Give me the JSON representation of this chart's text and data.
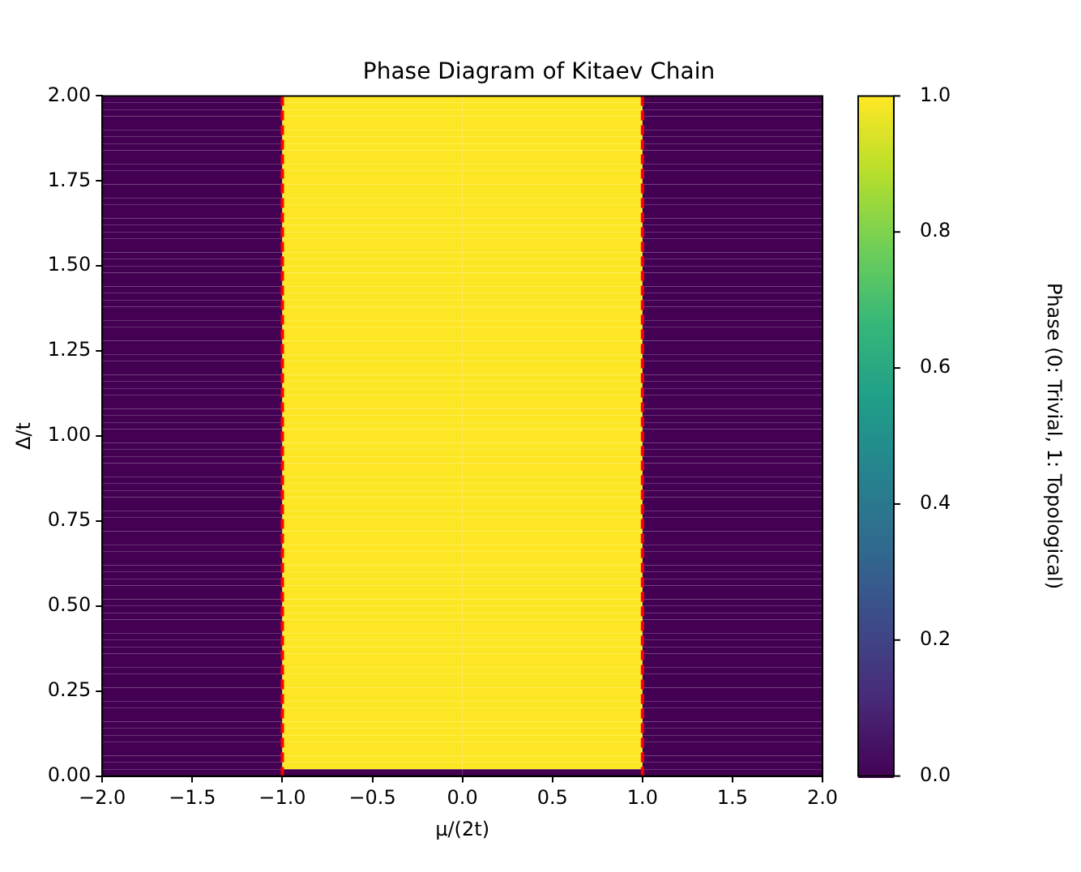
{
  "chart_data": {
    "type": "heatmap",
    "title": "Phase Diagram of Kitaev Chain",
    "xlabel": "μ/(2t)",
    "ylabel": "Δ/t",
    "clabel": "Phase (0: Trivial, 1: Topological)",
    "x": [
      -1.5,
      -0.5,
      0.5,
      1.5
    ],
    "y": [
      1.99,
      1.97,
      1.95,
      1.93,
      1.91,
      1.89,
      1.87,
      1.85,
      1.83,
      1.81,
      1.79,
      1.77,
      1.75,
      1.73,
      1.71,
      1.69,
      1.67,
      1.65,
      1.63,
      1.61,
      1.59,
      1.57,
      1.55,
      1.53,
      1.51,
      1.49,
      1.47,
      1.45,
      1.43,
      1.41,
      1.39,
      1.37,
      1.35,
      1.33,
      1.31,
      1.29,
      1.27,
      1.25,
      1.23,
      1.21,
      1.19,
      1.17,
      1.15,
      1.13,
      1.11,
      1.09,
      1.07,
      1.05,
      1.03,
      1.01,
      0.99,
      0.97,
      0.95,
      0.93,
      0.91,
      0.89,
      0.87,
      0.85,
      0.83,
      0.81,
      0.79,
      0.77,
      0.75,
      0.73,
      0.71,
      0.69,
      0.67,
      0.65,
      0.63,
      0.61,
      0.59,
      0.57,
      0.55,
      0.53,
      0.51,
      0.49,
      0.47,
      0.45,
      0.43,
      0.41,
      0.39,
      0.37,
      0.35,
      0.33,
      0.31,
      0.29,
      0.27,
      0.25,
      0.23,
      0.21,
      0.19,
      0.17,
      0.15,
      0.13,
      0.11,
      0.09,
      0.07,
      0.05,
      0.03,
      0.01
    ],
    "cells": [
      [
        0,
        1,
        1,
        0
      ],
      [
        0,
        1,
        1,
        0
      ],
      [
        0,
        1,
        1,
        0
      ],
      [
        0,
        1,
        1,
        0
      ],
      [
        0,
        1,
        1,
        0
      ],
      [
        0,
        1,
        1,
        0
      ],
      [
        0,
        1,
        1,
        0
      ],
      [
        0,
        1,
        1,
        0
      ],
      [
        0,
        1,
        1,
        0
      ],
      [
        0,
        1,
        1,
        0
      ],
      [
        0,
        1,
        1,
        0
      ],
      [
        0,
        1,
        1,
        0
      ],
      [
        0,
        1,
        1,
        0
      ],
      [
        0,
        1,
        1,
        0
      ],
      [
        0,
        1,
        1,
        0
      ],
      [
        0,
        1,
        1,
        0
      ],
      [
        0,
        1,
        1,
        0
      ],
      [
        0,
        1,
        1,
        0
      ],
      [
        0,
        1,
        1,
        0
      ],
      [
        0,
        1,
        1,
        0
      ],
      [
        0,
        1,
        1,
        0
      ],
      [
        0,
        1,
        1,
        0
      ],
      [
        0,
        1,
        1,
        0
      ],
      [
        0,
        1,
        1,
        0
      ],
      [
        0,
        1,
        1,
        0
      ],
      [
        0,
        1,
        1,
        0
      ],
      [
        0,
        1,
        1,
        0
      ],
      [
        0,
        1,
        1,
        0
      ],
      [
        0,
        1,
        1,
        0
      ],
      [
        0,
        1,
        1,
        0
      ],
      [
        0,
        1,
        1,
        0
      ],
      [
        0,
        1,
        1,
        0
      ],
      [
        0,
        1,
        1,
        0
      ],
      [
        0,
        1,
        1,
        0
      ],
      [
        0,
        1,
        1,
        0
      ],
      [
        0,
        1,
        1,
        0
      ],
      [
        0,
        1,
        1,
        0
      ],
      [
        0,
        1,
        1,
        0
      ],
      [
        0,
        1,
        1,
        0
      ],
      [
        0,
        1,
        1,
        0
      ],
      [
        0,
        1,
        1,
        0
      ],
      [
        0,
        1,
        1,
        0
      ],
      [
        0,
        1,
        1,
        0
      ],
      [
        0,
        1,
        1,
        0
      ],
      [
        0,
        1,
        1,
        0
      ],
      [
        0,
        1,
        1,
        0
      ],
      [
        0,
        1,
        1,
        0
      ],
      [
        0,
        1,
        1,
        0
      ],
      [
        0,
        1,
        1,
        0
      ],
      [
        0,
        1,
        1,
        0
      ],
      [
        0,
        1,
        1,
        0
      ],
      [
        0,
        1,
        1,
        0
      ],
      [
        0,
        1,
        1,
        0
      ],
      [
        0,
        1,
        1,
        0
      ],
      [
        0,
        1,
        1,
        0
      ],
      [
        0,
        1,
        1,
        0
      ],
      [
        0,
        1,
        1,
        0
      ],
      [
        0,
        1,
        1,
        0
      ],
      [
        0,
        1,
        1,
        0
      ],
      [
        0,
        1,
        1,
        0
      ],
      [
        0,
        1,
        1,
        0
      ],
      [
        0,
        1,
        1,
        0
      ],
      [
        0,
        1,
        1,
        0
      ],
      [
        0,
        1,
        1,
        0
      ],
      [
        0,
        1,
        1,
        0
      ],
      [
        0,
        1,
        1,
        0
      ],
      [
        0,
        1,
        1,
        0
      ],
      [
        0,
        1,
        1,
        0
      ],
      [
        0,
        1,
        1,
        0
      ],
      [
        0,
        1,
        1,
        0
      ],
      [
        0,
        1,
        1,
        0
      ],
      [
        0,
        1,
        1,
        0
      ],
      [
        0,
        1,
        1,
        0
      ],
      [
        0,
        1,
        1,
        0
      ],
      [
        0,
        1,
        1,
        0
      ],
      [
        0,
        1,
        1,
        0
      ],
      [
        0,
        1,
        1,
        0
      ],
      [
        0,
        1,
        1,
        0
      ],
      [
        0,
        1,
        1,
        0
      ],
      [
        0,
        1,
        1,
        0
      ],
      [
        0,
        1,
        1,
        0
      ],
      [
        0,
        1,
        1,
        0
      ],
      [
        0,
        1,
        1,
        0
      ],
      [
        0,
        1,
        1,
        0
      ],
      [
        0,
        1,
        1,
        0
      ],
      [
        0,
        1,
        1,
        0
      ],
      [
        0,
        1,
        1,
        0
      ],
      [
        0,
        1,
        1,
        0
      ],
      [
        0,
        1,
        1,
        0
      ],
      [
        0,
        1,
        1,
        0
      ],
      [
        0,
        1,
        1,
        0
      ],
      [
        0,
        1,
        1,
        0
      ],
      [
        0,
        1,
        1,
        0
      ],
      [
        0,
        1,
        1,
        0
      ],
      [
        0,
        1,
        1,
        0
      ],
      [
        0,
        1,
        1,
        0
      ],
      [
        0,
        1,
        1,
        0
      ],
      [
        0,
        1,
        1,
        0
      ],
      [
        0,
        1,
        1,
        0
      ],
      [
        0,
        0,
        0,
        0
      ]
    ],
    "colors": [
      "#440154",
      "#482878",
      "#3e4989",
      "#31688e",
      "#26828e",
      "#1f9e89",
      "#35b779",
      "#6ece58",
      "#b5de2b",
      "#fde725"
    ],
    "xlim": [
      -2,
      2
    ],
    "xticks": [
      {
        "value": -2,
        "label": "−2.0"
      },
      {
        "value": -1.5,
        "label": "−1.5"
      },
      {
        "value": -1,
        "label": "−1.0"
      },
      {
        "value": -0.5,
        "label": "−0.5"
      },
      {
        "value": 0,
        "label": "0.0"
      },
      {
        "value": 0.5,
        "label": "0.5"
      },
      {
        "value": 1,
        "label": "1.0"
      },
      {
        "value": 1.5,
        "label": "1.5"
      },
      {
        "value": 2,
        "label": "2.0"
      }
    ],
    "ylim": [
      0,
      2
    ],
    "yticks": [
      {
        "value": 0,
        "label": "0.00"
      },
      {
        "value": 0.25,
        "label": "0.25"
      },
      {
        "value": 0.5,
        "label": "0.50"
      },
      {
        "value": 0.75,
        "label": "0.75"
      },
      {
        "value": 1,
        "label": "1.00"
      },
      {
        "value": 1.25,
        "label": "1.25"
      },
      {
        "value": 1.5,
        "label": "1.50"
      },
      {
        "value": 1.75,
        "label": "1.75"
      },
      {
        "value": 2,
        "label": "2.00"
      }
    ],
    "clim": [
      0,
      1
    ],
    "cticks": [
      {
        "value": 0,
        "label": "0.0"
      },
      {
        "value": 0.2,
        "label": "0.2"
      },
      {
        "value": 0.4,
        "label": "0.4"
      },
      {
        "value": 0.6,
        "label": "0.6"
      },
      {
        "value": 0.8,
        "label": "0.8"
      },
      {
        "value": 1,
        "label": "1.0"
      }
    ],
    "ref_lines": [
      {
        "axis": "x",
        "value": -1,
        "color": "#ff0000",
        "line_style": "dashed"
      },
      {
        "axis": "x",
        "value": 1,
        "color": "#ff0000",
        "line_style": "dashed"
      }
    ]
  }
}
